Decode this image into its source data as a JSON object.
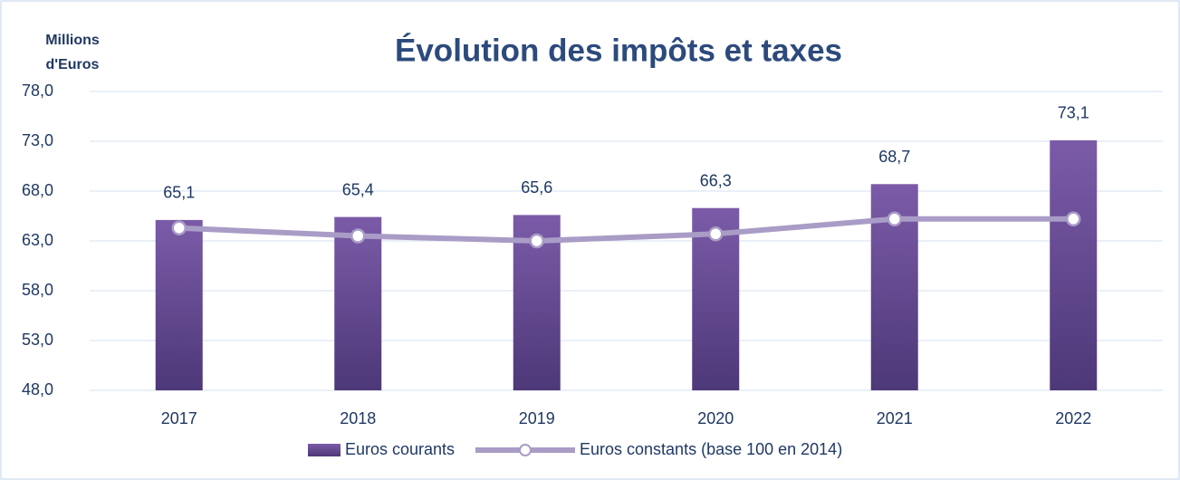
{
  "chart_data": {
    "type": "bar_line",
    "title": "Évolution des impôts et taxes",
    "y_axis_label": [
      "Millions",
      "d'Euros"
    ],
    "categories": [
      "2017",
      "2018",
      "2019",
      "2020",
      "2021",
      "2022"
    ],
    "series": [
      {
        "name": "Euros courants",
        "type": "bar",
        "color": "#6a4c98",
        "values": [
          65.1,
          65.4,
          65.6,
          66.3,
          68.7,
          73.1
        ],
        "value_labels": [
          "65,1",
          "65,4",
          "65,6",
          "66,3",
          "68,7",
          "73,1"
        ]
      },
      {
        "name": "Euros constants (base 100 en 2014)",
        "type": "line",
        "color": "#a99cc6",
        "values": [
          64.3,
          63.5,
          63.0,
          63.7,
          65.2,
          65.2
        ]
      }
    ],
    "ylim": [
      48,
      78
    ],
    "yticks": [
      {
        "value": 48,
        "label": "48,0"
      },
      {
        "value": 53,
        "label": "53,0"
      },
      {
        "value": 58,
        "label": "58,0"
      },
      {
        "value": 63,
        "label": "63,0"
      },
      {
        "value": 68,
        "label": "68,0"
      },
      {
        "value": 73,
        "label": "73,0"
      },
      {
        "value": 78,
        "label": "78,0"
      }
    ],
    "grid": true
  }
}
